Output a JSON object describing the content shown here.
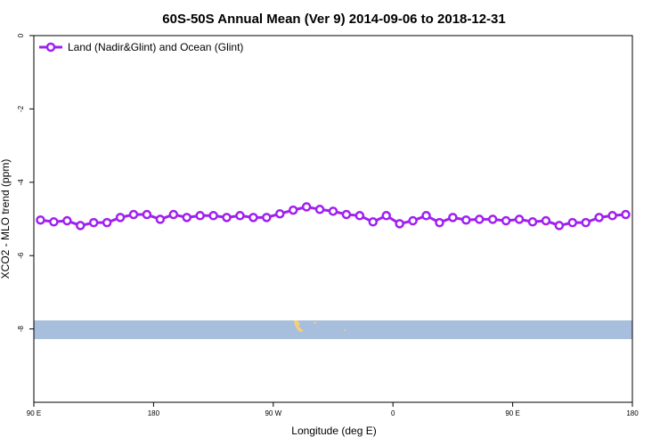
{
  "chart_data": {
    "type": "line",
    "title": "60S-50S Annual Mean (Ver 9)   2014-09-06 to 2018-12-31",
    "xlabel": "Longitude (deg E)",
    "ylabel": "XCO2 - MLO trend (ppm)",
    "x": [
      95,
      105,
      115,
      125,
      135,
      145,
      155,
      165,
      175,
      185,
      195,
      205,
      215,
      225,
      235,
      245,
      255,
      265,
      275,
      285,
      295,
      305,
      315,
      325,
      335,
      345,
      355,
      365,
      375,
      385,
      395,
      405,
      415,
      425,
      435,
      445,
      455,
      465,
      475,
      485,
      495,
      505,
      515,
      525,
      535
    ],
    "series": [
      {
        "name": "Land (Nadir&Glint) and Ocean (Glint)",
        "color": "#a020f0",
        "values": [
          -5.03,
          -5.08,
          -5.05,
          -5.18,
          -5.1,
          -5.1,
          -4.96,
          -4.88,
          -4.88,
          -5.01,
          -4.88,
          -4.96,
          -4.91,
          -4.91,
          -4.96,
          -4.91,
          -4.96,
          -4.96,
          -4.86,
          -4.76,
          -4.67,
          -4.74,
          -4.79,
          -4.88,
          -4.91,
          -5.08,
          -4.91,
          -5.13,
          -5.05,
          -4.91,
          -5.1,
          -4.96,
          -5.03,
          -5.01,
          -5.01,
          -5.05,
          -5.01,
          -5.08,
          -5.05,
          -5.18,
          -5.1,
          -5.1,
          -4.96,
          -4.91,
          -4.88
        ]
      }
    ],
    "xlim": [
      90,
      540
    ],
    "xticks": [
      {
        "value": 90,
        "label": "90 E"
      },
      180,
      {
        "value": 270,
        "label": "90 W"
      },
      {
        "value": 360,
        "label": "0"
      },
      {
        "value": 450,
        "label": "90 E"
      },
      {
        "value": 540,
        "label": "180"
      }
    ],
    "ylim": [
      -10,
      0
    ],
    "yticks": [
      0,
      -2,
      -4,
      -6,
      -8
    ],
    "legend": "top-left"
  }
}
